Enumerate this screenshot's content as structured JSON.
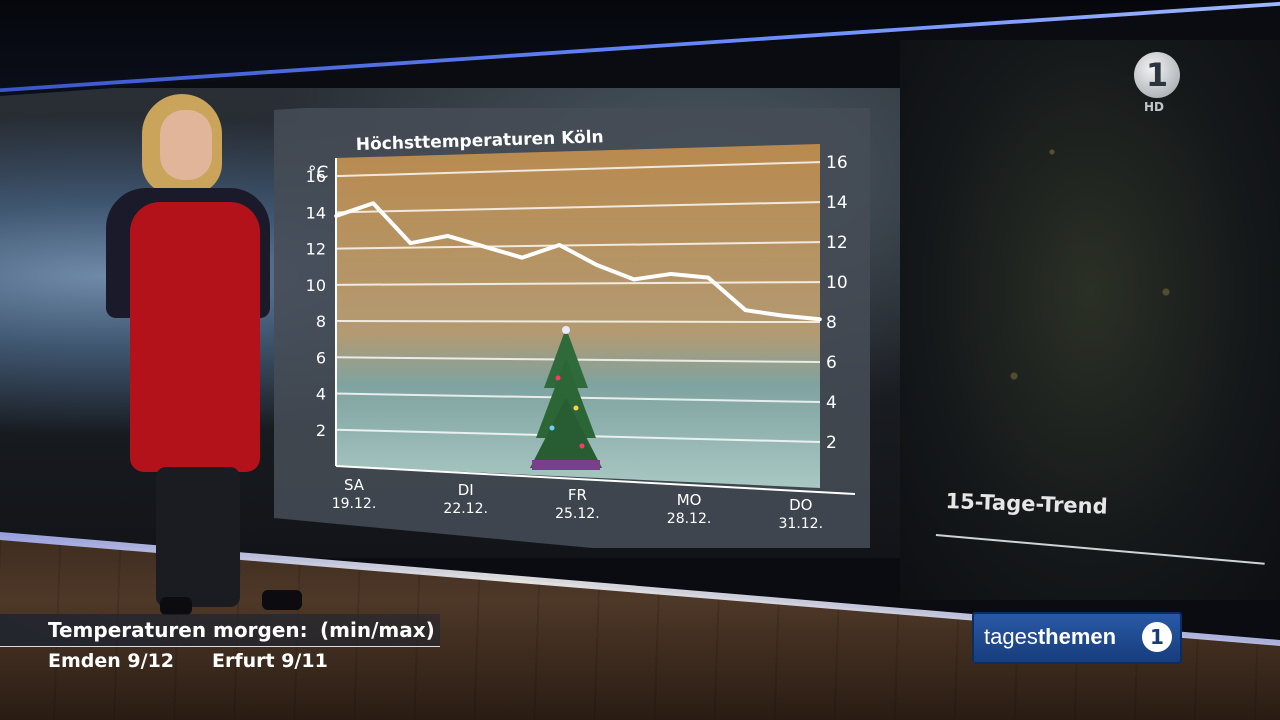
{
  "chart_data": {
    "type": "line",
    "title": "Höchsttemperaturen Köln",
    "ylabel": "°C",
    "ylim": [
      0,
      17
    ],
    "yticks_left": [
      2,
      4,
      6,
      8,
      10,
      12,
      14,
      16
    ],
    "yticks_right": [
      2,
      4,
      6,
      8,
      10,
      12,
      14,
      16
    ],
    "x_labels": [
      {
        "day": "SA",
        "date": "19.12."
      },
      {
        "day": "DI",
        "date": "22.12."
      },
      {
        "day": "FR",
        "date": "25.12."
      },
      {
        "day": "MO",
        "date": "28.12."
      },
      {
        "day": "DO",
        "date": "31.12."
      }
    ],
    "x": [
      "19.12.",
      "20.12.",
      "21.12.",
      "22.12.",
      "23.12.",
      "24.12.",
      "25.12.",
      "26.12.",
      "27.12.",
      "28.12.",
      "29.12.",
      "30.12.",
      "31.12.",
      "01.01."
    ],
    "values": [
      13.8,
      14.5,
      12.3,
      12.7,
      12.1,
      11.5,
      12.2,
      11.1,
      10.3,
      10.6,
      10.4,
      8.6,
      8.3,
      8.1
    ],
    "grid": true,
    "line_color": "#ffffff"
  },
  "overlay": {
    "trend_label": "15-Tage-Trend",
    "hd_label": "HD",
    "ard_label": "1"
  },
  "ticker": {
    "label": "Temperaturen morgen:",
    "range_label": "(min/max)",
    "city1": "Emden 9/12",
    "city2": "Erfurt 9/11"
  },
  "brand": {
    "tages": "tages",
    "themen": "themen",
    "logo": "1"
  }
}
